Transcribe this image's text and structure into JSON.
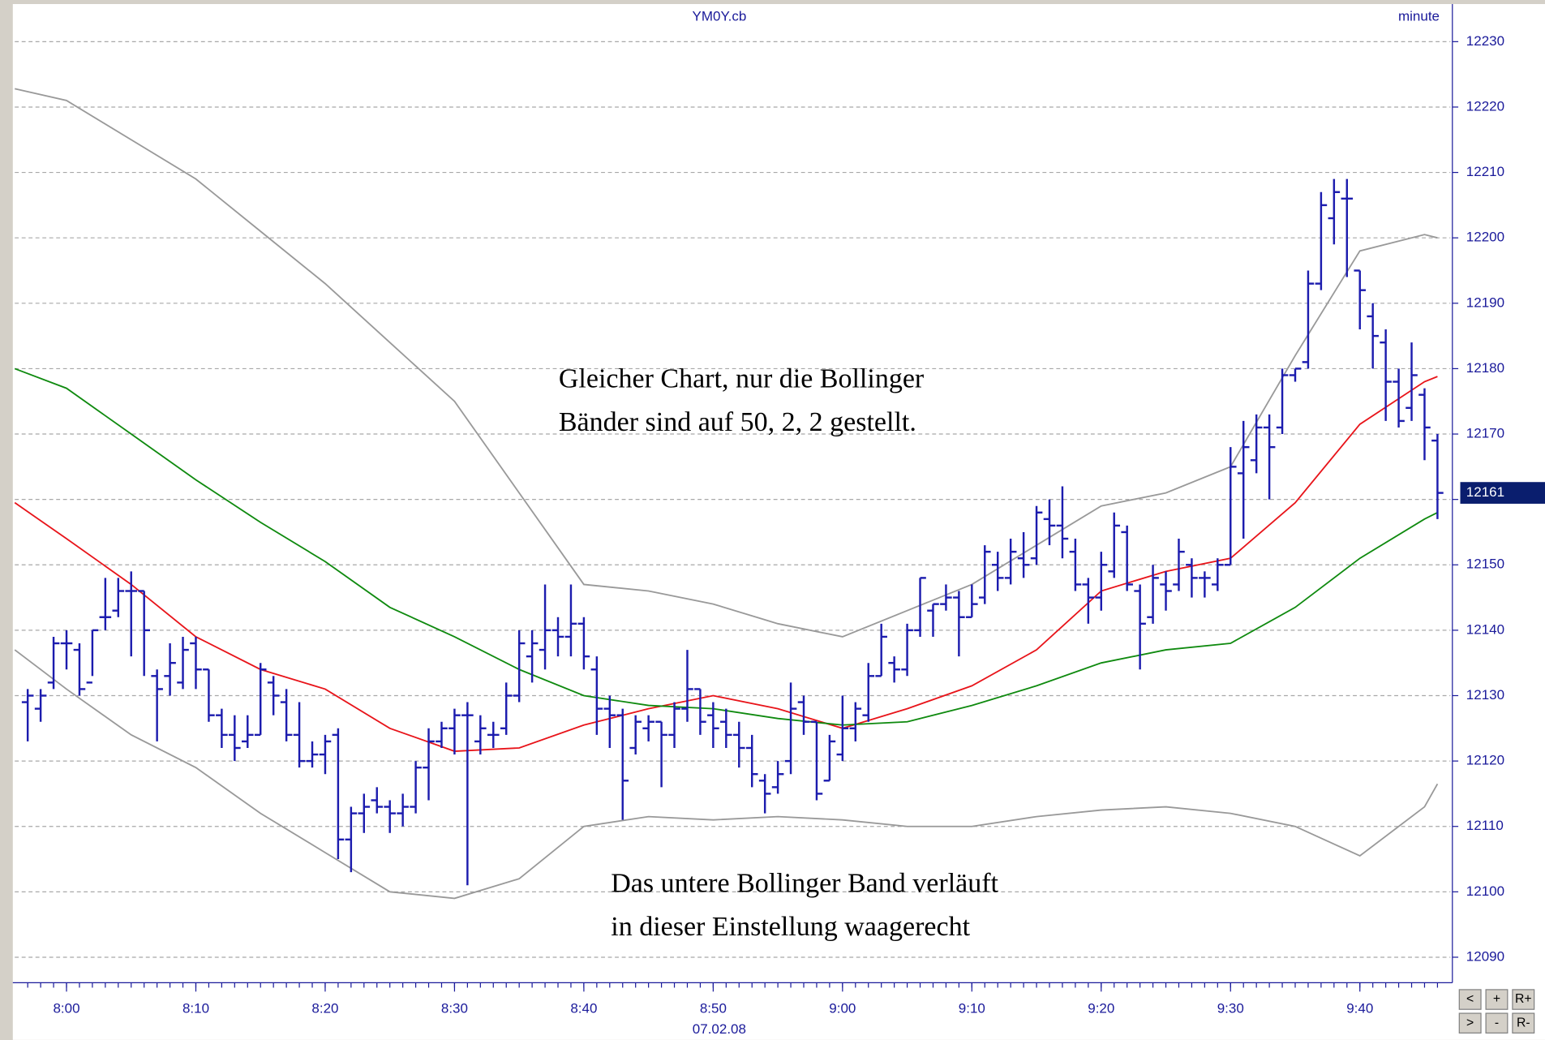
{
  "chart_data": {
    "type": "ohlc",
    "title": "YM0Y.cb",
    "interval": "minute",
    "date": "07.02.08",
    "color": "#1c1cae",
    "x": [
      "7:57",
      "7:58",
      "7:59",
      "8:00",
      "8:01",
      "8:02",
      "8:03",
      "8:04",
      "8:05",
      "8:06",
      "8:07",
      "8:08",
      "8:09",
      "8:10",
      "8:11",
      "8:12",
      "8:13",
      "8:14",
      "8:15",
      "8:16",
      "8:17",
      "8:18",
      "8:19",
      "8:20",
      "8:21",
      "8:22",
      "8:23",
      "8:24",
      "8:25",
      "8:26",
      "8:27",
      "8:28",
      "8:29",
      "8:30",
      "8:31",
      "8:32",
      "8:33",
      "8:34",
      "8:35",
      "8:36",
      "8:37",
      "8:38",
      "8:39",
      "8:40",
      "8:41",
      "8:42",
      "8:43",
      "8:44",
      "8:45",
      "8:46",
      "8:47",
      "8:48",
      "8:49",
      "8:50",
      "8:51",
      "8:52",
      "8:53",
      "8:54",
      "8:55",
      "8:56",
      "8:57",
      "8:58",
      "8:59",
      "9:00",
      "9:01",
      "9:02",
      "9:03",
      "9:04",
      "9:05",
      "9:06",
      "9:07",
      "9:08",
      "9:09",
      "9:10",
      "9:11",
      "9:12",
      "9:13",
      "9:14",
      "9:15",
      "9:16",
      "9:17",
      "9:18",
      "9:19",
      "9:20",
      "9:21",
      "9:22",
      "9:23",
      "9:24",
      "9:25",
      "9:26",
      "9:27",
      "9:28",
      "9:29",
      "9:30",
      "9:31",
      "9:32",
      "9:33",
      "9:34",
      "9:35",
      "9:36",
      "9:37",
      "9:38",
      "9:39",
      "9:40",
      "9:41",
      "9:42",
      "9:43",
      "9:44",
      "9:45",
      "9:46"
    ],
    "open": [
      12129,
      12128,
      12132,
      12138,
      12137,
      12132,
      12142,
      12143,
      12146,
      12146,
      12133,
      12133,
      12132,
      12138,
      12134,
      12127,
      12124,
      12123,
      12124,
      12132,
      12129,
      12124,
      12120,
      12121,
      12124,
      12108,
      12112,
      12114,
      12113,
      12112,
      12113,
      12119,
      12123,
      12125,
      12127,
      12123,
      12124,
      12125,
      12130,
      12136,
      12137,
      12140,
      12139,
      12141,
      12134,
      12128,
      12127,
      12122,
      12125,
      12126,
      12124,
      12128,
      12131,
      12127,
      12126,
      12124,
      12122,
      12117,
      12116,
      12120,
      12129,
      12126,
      12117,
      12121,
      12125,
      12127,
      12133,
      12135,
      12134,
      12140,
      12143,
      12144,
      12145,
      12142,
      12145,
      12150,
      12148,
      12151,
      12151,
      12157,
      12156,
      12152,
      12147,
      12145,
      12149,
      12155,
      12146,
      12142,
      12147,
      12147,
      12150,
      12148,
      12147,
      12150,
      12164,
      12166,
      12171,
      12171,
      12179,
      12181,
      12193,
      12203,
      12206,
      12195,
      12188,
      12184,
      12178,
      12174,
      12176,
      12169
    ],
    "high": [
      12131,
      12131,
      12139,
      12140,
      12138,
      12140,
      12148,
      12148,
      12149,
      12146,
      12134,
      12138,
      12139,
      12139,
      12134,
      12128,
      12127,
      12127,
      12135,
      12133,
      12131,
      12129,
      12123,
      12124,
      12125,
      12113,
      12115,
      12116,
      12114,
      12115,
      12120,
      12125,
      12126,
      12128,
      12129,
      12127,
      12126,
      12132,
      12140,
      12140,
      12147,
      12142,
      12147,
      12142,
      12136,
      12130,
      12128,
      12127,
      12127,
      12126,
      12129,
      12137,
      12131,
      12129,
      12128,
      12126,
      12124,
      12118,
      12120,
      12132,
      12130,
      12126,
      12124,
      12130,
      12129,
      12135,
      12141,
      12136,
      12141,
      12148,
      12144,
      12147,
      12146,
      12147,
      12153,
      12152,
      12154,
      12155,
      12159,
      12160,
      12162,
      12154,
      12148,
      12152,
      12158,
      12156,
      12147,
      12150,
      12149,
      12154,
      12151,
      12149,
      12151,
      12168,
      12172,
      12173,
      12173,
      12180,
      12180,
      12195,
      12207,
      12209,
      12209,
      12195,
      12190,
      12186,
      12180,
      12184,
      12177,
      12170
    ],
    "low": [
      12123,
      12126,
      12131,
      12134,
      12130,
      12133,
      12140,
      12142,
      12136,
      12133,
      12123,
      12130,
      12131,
      12131,
      12126,
      12122,
      12120,
      12122,
      12124,
      12127,
      12123,
      12119,
      12119,
      12118,
      12105,
      12103,
      12109,
      12112,
      12109,
      12110,
      12112,
      12114,
      12122,
      12121,
      12101,
      12121,
      12122,
      12124,
      12129,
      12132,
      12134,
      12136,
      12136,
      12134,
      12124,
      12122,
      12111,
      12121,
      12123,
      12116,
      12122,
      12126,
      12124,
      12122,
      12122,
      12119,
      12116,
      12112,
      12115,
      12118,
      12124,
      12114,
      12117,
      12120,
      12123,
      12126,
      12133,
      12132,
      12133,
      12139,
      12139,
      12143,
      12136,
      12142,
      12144,
      12146,
      12147,
      12148,
      12150,
      12153,
      12151,
      12146,
      12141,
      12143,
      12148,
      12146,
      12134,
      12141,
      12143,
      12146,
      12145,
      12145,
      12146,
      12150,
      12154,
      12164,
      12160,
      12170,
      12178,
      12180,
      12192,
      12199,
      12194,
      12186,
      12180,
      12172,
      12171,
      12172,
      12166,
      12157
    ],
    "close": [
      12130,
      12130,
      12138,
      12138,
      12131,
      12140,
      12142,
      12146,
      12146,
      12140,
      12131,
      12135,
      12137,
      12134,
      12127,
      12124,
      12122,
      12124,
      12134,
      12130,
      12124,
      12120,
      12121,
      12123,
      12108,
      12112,
      12113,
      12113,
      12112,
      12113,
      12119,
      12123,
      12125,
      12127,
      12127,
      12125,
      12124,
      12130,
      12138,
      12138,
      12140,
      12139,
      12141,
      12136,
      12128,
      12127,
      12117,
      12126,
      12126,
      12124,
      12128,
      12131,
      12126,
      12125,
      12124,
      12122,
      12118,
      12115,
      12118,
      12128,
      12126,
      12115,
      12123,
      12125,
      12128,
      12133,
      12139,
      12134,
      12140,
      12148,
      12144,
      12145,
      12142,
      12144,
      12152,
      12148,
      12152,
      12150,
      12158,
      12156,
      12154,
      12147,
      12145,
      12150,
      12156,
      12147,
      12141,
      12148,
      12146,
      12152,
      12148,
      12148,
      12150,
      12165,
      12168,
      12171,
      12168,
      12179,
      12180,
      12193,
      12205,
      12207,
      12206,
      12192,
      12185,
      12178,
      12172,
      12179,
      12171,
      12161
    ],
    "overlays": [
      {
        "color": "#999999",
        "x": [
          "7:56",
          "8:00",
          "8:05",
          "8:10",
          "8:15",
          "8:20",
          "8:25",
          "8:30",
          "8:35",
          "8:40",
          "8:45",
          "8:50",
          "8:55",
          "9:00",
          "9:05",
          "9:10",
          "9:15",
          "9:20",
          "9:25",
          "9:30",
          "9:35",
          "9:40",
          "9:45",
          "9:46"
        ],
        "values": [
          12222.8,
          12221,
          12215,
          12209,
          12201,
          12193,
          12184,
          12175,
          12161,
          12147,
          12146,
          12144,
          12141,
          12139,
          12143,
          12147,
          12153,
          12159,
          12161,
          12165,
          12182,
          12198,
          12200.5,
          12200
        ]
      },
      {
        "color": "#e8141a",
        "x": [
          "7:56",
          "8:00",
          "8:05",
          "8:10",
          "8:15",
          "8:20",
          "8:25",
          "8:30",
          "8:35",
          "8:40",
          "8:45",
          "8:50",
          "8:55",
          "9:00",
          "9:05",
          "9:10",
          "9:15",
          "9:20",
          "9:25",
          "9:30",
          "9:35",
          "9:40",
          "9:45",
          "9:46"
        ],
        "values": [
          12159.5,
          12154,
          12147,
          12139,
          12134,
          12131,
          12125,
          12121.5,
          12122,
          12125.5,
          12128,
          12130,
          12128,
          12125,
          12128,
          12131.5,
          12137,
          12146,
          12149,
          12151,
          12159.5,
          12171.5,
          12178,
          12178.8
        ]
      },
      {
        "color": "#0f8a0f",
        "x": [
          "7:56",
          "8:00",
          "8:05",
          "8:10",
          "8:15",
          "8:20",
          "8:25",
          "8:30",
          "8:35",
          "8:40",
          "8:45",
          "8:50",
          "8:55",
          "9:00",
          "9:05",
          "9:10",
          "9:15",
          "9:20",
          "9:25",
          "9:30",
          "9:35",
          "9:40",
          "9:45",
          "9:46"
        ],
        "values": [
          12180,
          12177,
          12170,
          12163,
          12156.5,
          12150.5,
          12143.5,
          12139,
          12134,
          12130,
          12128.5,
          12128,
          12126.5,
          12125.5,
          12126,
          12128.5,
          12131.5,
          12135,
          12137,
          12138,
          12143.5,
          12151,
          12157,
          12158
        ]
      },
      {
        "color": "#999999",
        "x": [
          "7:56",
          "8:00",
          "8:05",
          "8:10",
          "8:15",
          "8:20",
          "8:25",
          "8:30",
          "8:35",
          "8:40",
          "8:45",
          "8:50",
          "8:55",
          "9:00",
          "9:05",
          "9:10",
          "9:15",
          "9:20",
          "9:25",
          "9:30",
          "9:35",
          "9:40",
          "9:45",
          "9:46"
        ],
        "values": [
          12137,
          12131,
          12124,
          12119,
          12112,
          12106,
          12100,
          12099,
          12102,
          12110,
          12111.5,
          12111,
          12111.5,
          12111,
          12110,
          12110,
          12111.5,
          12112.5,
          12113,
          12112,
          12110,
          12105.5,
          12113,
          12116.5
        ]
      }
    ],
    "xlim": [
      "7:56",
      "9:47"
    ],
    "xticks": [
      "8:00",
      "8:10",
      "8:20",
      "8:30",
      "8:40",
      "8:50",
      "9:00",
      "9:10",
      "9:20",
      "9:30",
      "9:40"
    ],
    "ylim": [
      12086.4,
      12235.6
    ],
    "yticks": [
      12090,
      12100,
      12110,
      12120,
      12130,
      12140,
      12150,
      12160,
      12170,
      12180,
      12190,
      12200,
      12210,
      12220,
      12230
    ],
    "grid": true,
    "last_price": 12161,
    "annotations": [
      [
        "Gleicher Chart, nur die Bollinger",
        "Bänder sind auf 50, 2, 2 gestellt."
      ],
      [
        "Das untere Bollinger Band verläuft",
        "in dieser Einstellung waagerecht"
      ]
    ],
    "controls": [
      "<",
      "+",
      "R+",
      ">",
      "-",
      "R-"
    ]
  }
}
